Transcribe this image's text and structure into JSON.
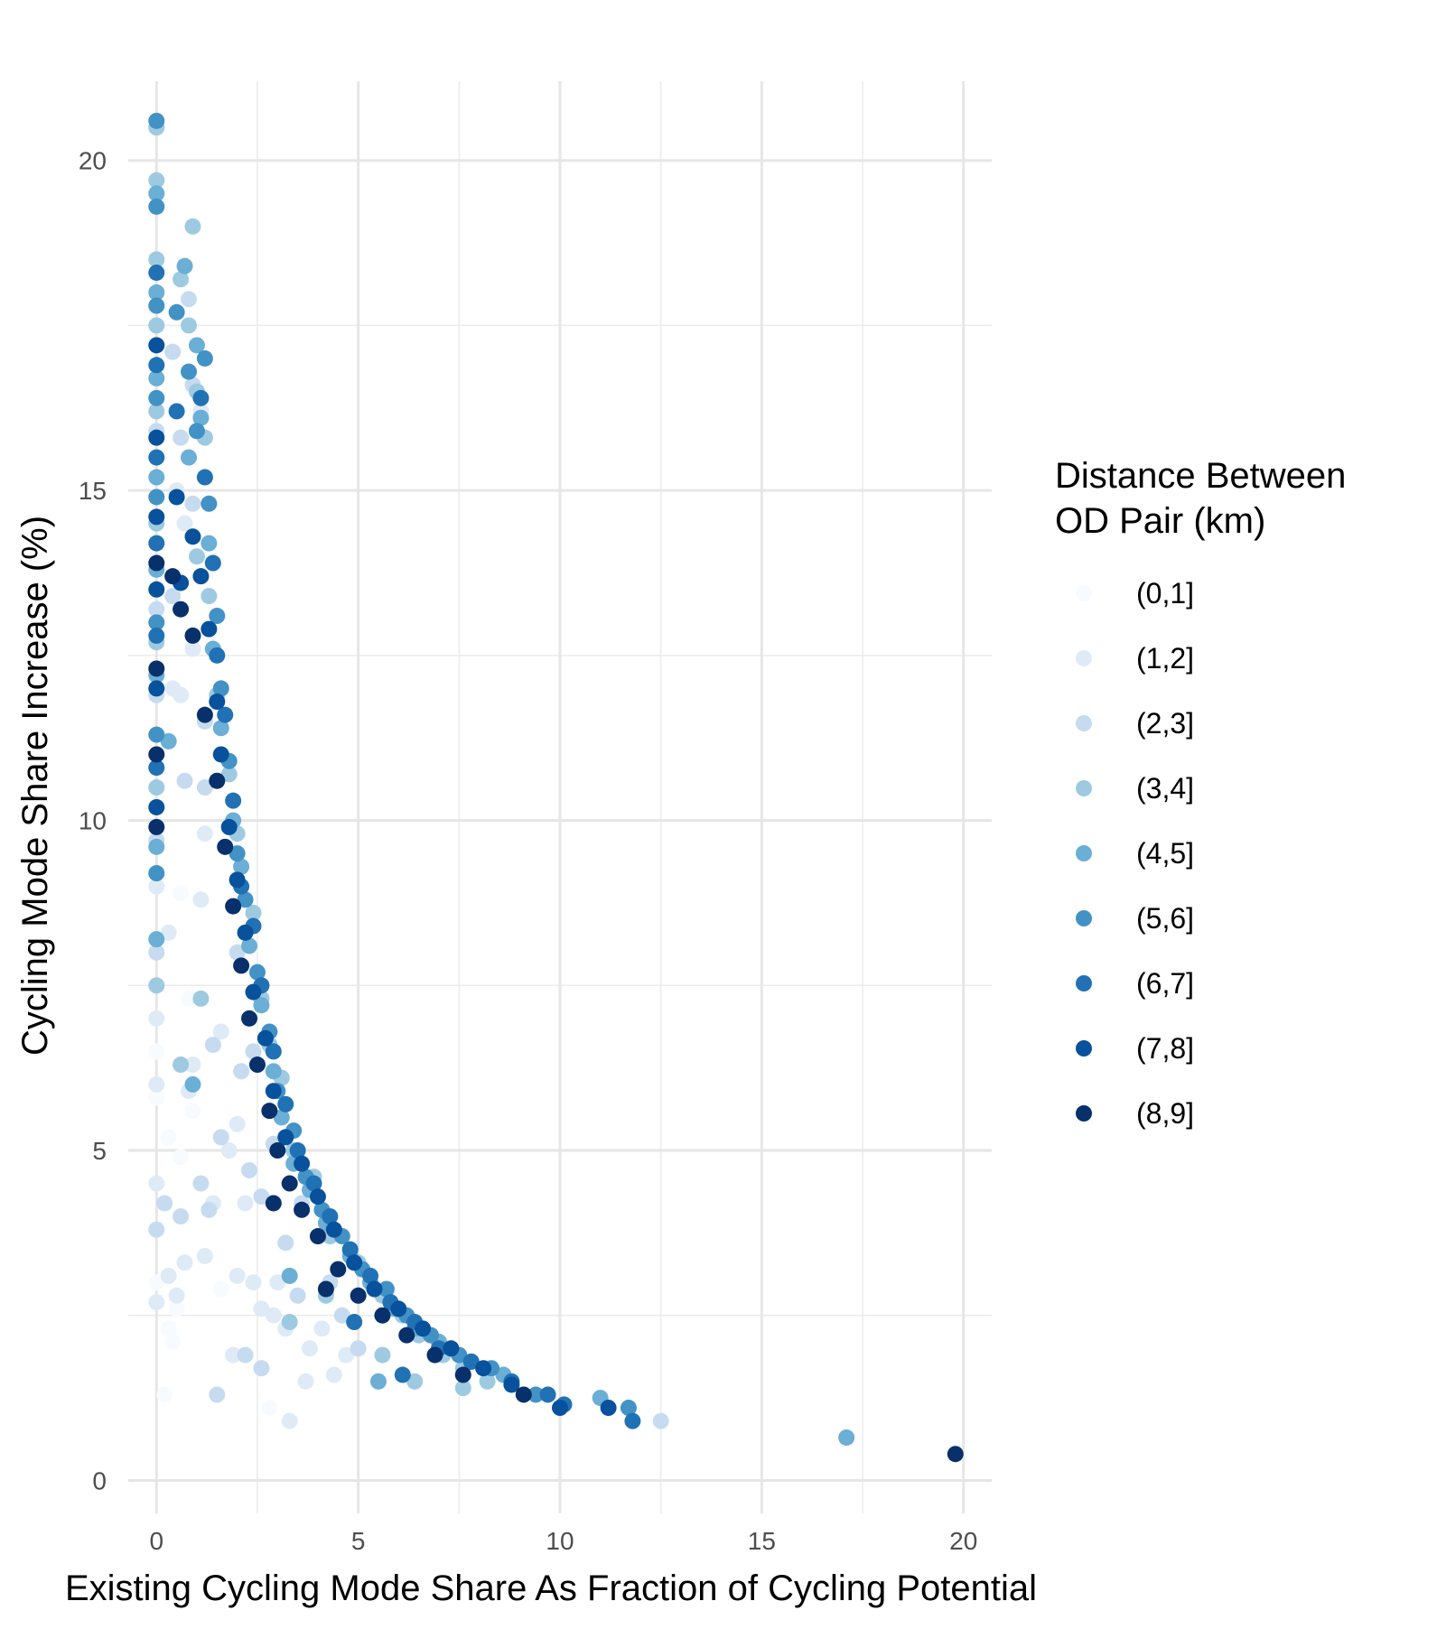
{
  "chart_data": {
    "type": "scatter",
    "title": "",
    "xlabel": "Existing Cycling Mode Share As Fraction of Cycling Potential",
    "ylabel": "Cycling Mode Share Increase (%)",
    "xlim": [
      -0.7,
      20.7
    ],
    "ylim": [
      -0.5,
      21.2
    ],
    "x_ticks": [
      0,
      5,
      10,
      15,
      20
    ],
    "x_tick_labels": [
      "0",
      "5",
      "10",
      "15",
      "20"
    ],
    "y_ticks": [
      0,
      5,
      10,
      15,
      20
    ],
    "y_tick_labels": [
      "0",
      "5",
      "10",
      "15",
      "20"
    ],
    "grid": true,
    "legend": {
      "title_line1": "Distance Between",
      "title_line2": "OD Pair (km)",
      "placement": "right"
    },
    "series": [
      {
        "name": "(0,1]",
        "color": "#f7fbff",
        "points": [
          [
            0.0,
            6.5
          ],
          [
            0.0,
            5.8
          ],
          [
            0.3,
            5.2
          ],
          [
            0.6,
            4.9
          ],
          [
            0.9,
            5.6
          ],
          [
            0.5,
            2.6
          ],
          [
            0.4,
            2.1
          ],
          [
            0.3,
            2.3
          ],
          [
            2.8,
            1.1
          ],
          [
            0.2,
            1.3
          ],
          [
            1.6,
            2.9
          ],
          [
            0.8,
            7.3
          ],
          [
            0.6,
            8.9
          ],
          [
            0.0,
            3.0
          ]
        ]
      },
      {
        "name": "(1,2]",
        "color": "#deebf7",
        "points": [
          [
            0.0,
            2.7
          ],
          [
            0.0,
            4.5
          ],
          [
            0.0,
            6.0
          ],
          [
            0.0,
            7.0
          ],
          [
            0.0,
            9.0
          ],
          [
            0.3,
            3.1
          ],
          [
            0.5,
            2.8
          ],
          [
            0.7,
            3.3
          ],
          [
            1.2,
            3.4
          ],
          [
            0.9,
            6.3
          ],
          [
            1.1,
            8.8
          ],
          [
            1.6,
            6.8
          ],
          [
            1.8,
            5.0
          ],
          [
            2.2,
            4.2
          ],
          [
            2.0,
            3.1
          ],
          [
            2.4,
            3.0
          ],
          [
            3.2,
            2.3
          ],
          [
            3.8,
            2.0
          ],
          [
            4.1,
            2.3
          ],
          [
            4.4,
            1.6
          ],
          [
            4.7,
            1.9
          ],
          [
            3.3,
            0.9
          ],
          [
            2.0,
            5.4
          ],
          [
            0.6,
            11.9
          ],
          [
            0.9,
            12.6
          ],
          [
            0.4,
            12.0
          ],
          [
            1.2,
            9.8
          ],
          [
            0.3,
            8.3
          ],
          [
            0.8,
            5.9
          ],
          [
            1.4,
            4.2
          ],
          [
            2.6,
            2.6
          ],
          [
            3.0,
            3.0
          ],
          [
            0.5,
            15.0
          ],
          [
            1.1,
            16.2
          ],
          [
            0.7,
            14.5
          ],
          [
            1.9,
            1.9
          ],
          [
            3.7,
            1.5
          ],
          [
            2.9,
            2.5
          ]
        ]
      },
      {
        "name": "(2,3]",
        "color": "#c6dbef",
        "points": [
          [
            0.0,
            15.9
          ],
          [
            0.0,
            13.2
          ],
          [
            0.0,
            11.9
          ],
          [
            0.0,
            9.7
          ],
          [
            0.0,
            8.0
          ],
          [
            0.0,
            3.8
          ],
          [
            0.2,
            4.2
          ],
          [
            0.6,
            4.0
          ],
          [
            1.1,
            4.5
          ],
          [
            1.3,
            4.1
          ],
          [
            1.6,
            5.2
          ],
          [
            1.4,
            6.6
          ],
          [
            2.1,
            6.2
          ],
          [
            2.3,
            4.7
          ],
          [
            2.6,
            4.3
          ],
          [
            2.9,
            5.1
          ],
          [
            3.2,
            3.6
          ],
          [
            3.5,
            2.8
          ],
          [
            3.6,
            4.2
          ],
          [
            4.3,
            3.0
          ],
          [
            4.6,
            2.5
          ],
          [
            1.5,
            1.3
          ],
          [
            2.2,
            1.9
          ],
          [
            2.6,
            1.7
          ],
          [
            1.2,
            10.5
          ],
          [
            0.7,
            10.6
          ],
          [
            0.4,
            13.4
          ],
          [
            0.6,
            15.8
          ],
          [
            0.9,
            14.8
          ],
          [
            1.2,
            11.5
          ],
          [
            1.7,
            9.6
          ],
          [
            2.0,
            8.0
          ],
          [
            2.4,
            6.5
          ],
          [
            0.8,
            17.9
          ],
          [
            0.4,
            17.1
          ],
          [
            12.5,
            0.9
          ],
          [
            5.0,
            2.0
          ],
          [
            0.9,
            16.6
          ]
        ]
      },
      {
        "name": "(3,4]",
        "color": "#9ecae1",
        "points": [
          [
            0.0,
            20.5
          ],
          [
            0.0,
            19.7
          ],
          [
            0.0,
            18.5
          ],
          [
            0.0,
            17.5
          ],
          [
            0.0,
            16.2
          ],
          [
            0.0,
            14.5
          ],
          [
            0.0,
            12.7
          ],
          [
            0.0,
            10.5
          ],
          [
            0.0,
            7.5
          ],
          [
            0.9,
            19.0
          ],
          [
            0.6,
            18.2
          ],
          [
            0.8,
            17.5
          ],
          [
            1.0,
            16.5
          ],
          [
            1.2,
            15.8
          ],
          [
            1.0,
            14.0
          ],
          [
            1.3,
            13.4
          ],
          [
            1.5,
            11.9
          ],
          [
            1.8,
            10.7
          ],
          [
            2.0,
            9.8
          ],
          [
            2.4,
            8.6
          ],
          [
            2.6,
            7.3
          ],
          [
            2.8,
            6.6
          ],
          [
            3.1,
            6.1
          ],
          [
            3.4,
            5.0
          ],
          [
            3.9,
            4.6
          ],
          [
            4.3,
            3.7
          ],
          [
            5.0,
            3.3
          ],
          [
            5.6,
            2.8
          ],
          [
            6.1,
            2.5
          ],
          [
            6.5,
            2.2
          ],
          [
            7.1,
            1.9
          ],
          [
            7.6,
            1.7
          ],
          [
            8.2,
            1.5
          ],
          [
            0.6,
            6.3
          ],
          [
            1.1,
            7.3
          ],
          [
            3.3,
            2.4
          ],
          [
            4.2,
            2.8
          ],
          [
            7.6,
            1.4
          ],
          [
            6.4,
            1.5
          ],
          [
            5.6,
            1.9
          ]
        ]
      },
      {
        "name": "(4,5]",
        "color": "#6baed6",
        "points": [
          [
            0.0,
            19.5
          ],
          [
            0.0,
            18.0
          ],
          [
            0.0,
            16.7
          ],
          [
            0.0,
            15.2
          ],
          [
            0.0,
            13.8
          ],
          [
            0.0,
            12.2
          ],
          [
            0.0,
            9.6
          ],
          [
            0.0,
            8.2
          ],
          [
            0.7,
            18.4
          ],
          [
            1.0,
            17.2
          ],
          [
            1.1,
            16.1
          ],
          [
            0.8,
            15.5
          ],
          [
            1.3,
            14.2
          ],
          [
            1.4,
            12.6
          ],
          [
            1.6,
            11.4
          ],
          [
            1.9,
            10.0
          ],
          [
            2.1,
            9.3
          ],
          [
            2.3,
            8.1
          ],
          [
            2.6,
            7.2
          ],
          [
            2.9,
            6.2
          ],
          [
            3.1,
            5.5
          ],
          [
            3.4,
            4.8
          ],
          [
            3.8,
            4.4
          ],
          [
            4.2,
            3.9
          ],
          [
            4.8,
            3.4
          ],
          [
            5.3,
            3.0
          ],
          [
            5.9,
            2.6
          ],
          [
            6.4,
            2.3
          ],
          [
            7.0,
            2.1
          ],
          [
            7.8,
            1.8
          ],
          [
            8.6,
            1.6
          ],
          [
            17.1,
            0.65
          ],
          [
            5.5,
            1.5
          ],
          [
            3.3,
            3.1
          ],
          [
            0.9,
            6.0
          ],
          [
            0.3,
            11.2
          ],
          [
            11.0,
            1.25
          ]
        ]
      },
      {
        "name": "(5,6]",
        "color": "#4292c6",
        "points": [
          [
            0.0,
            20.6
          ],
          [
            0.0,
            19.3
          ],
          [
            0.0,
            17.8
          ],
          [
            0.0,
            16.4
          ],
          [
            0.0,
            14.9
          ],
          [
            0.0,
            13.0
          ],
          [
            0.0,
            11.3
          ],
          [
            0.0,
            9.2
          ],
          [
            1.2,
            17.0
          ],
          [
            1.0,
            15.9
          ],
          [
            1.3,
            14.8
          ],
          [
            1.5,
            13.1
          ],
          [
            1.6,
            12.0
          ],
          [
            1.8,
            10.9
          ],
          [
            2.0,
            9.5
          ],
          [
            2.2,
            8.8
          ],
          [
            2.5,
            7.7
          ],
          [
            2.8,
            6.8
          ],
          [
            3.0,
            5.9
          ],
          [
            3.4,
            5.3
          ],
          [
            3.7,
            4.6
          ],
          [
            4.1,
            4.1
          ],
          [
            4.6,
            3.7
          ],
          [
            5.1,
            3.2
          ],
          [
            5.7,
            2.9
          ],
          [
            6.2,
            2.5
          ],
          [
            6.8,
            2.2
          ],
          [
            7.5,
            1.9
          ],
          [
            8.3,
            1.7
          ],
          [
            9.4,
            1.3
          ],
          [
            11.7,
            1.1
          ],
          [
            0.8,
            16.8
          ],
          [
            0.5,
            17.7
          ]
        ]
      },
      {
        "name": "(6,7]",
        "color": "#2171b5",
        "points": [
          [
            0.0,
            18.3
          ],
          [
            0.0,
            16.9
          ],
          [
            0.0,
            15.5
          ],
          [
            0.0,
            14.2
          ],
          [
            0.0,
            12.8
          ],
          [
            0.0,
            10.8
          ],
          [
            1.1,
            16.4
          ],
          [
            1.2,
            15.2
          ],
          [
            1.4,
            13.9
          ],
          [
            1.5,
            12.5
          ],
          [
            1.7,
            11.6
          ],
          [
            1.9,
            10.3
          ],
          [
            2.1,
            9.0
          ],
          [
            2.4,
            8.4
          ],
          [
            2.6,
            7.5
          ],
          [
            2.9,
            6.5
          ],
          [
            3.2,
            5.7
          ],
          [
            3.5,
            5.0
          ],
          [
            3.9,
            4.5
          ],
          [
            4.3,
            4.0
          ],
          [
            4.8,
            3.5
          ],
          [
            5.3,
            3.1
          ],
          [
            5.8,
            2.7
          ],
          [
            6.4,
            2.4
          ],
          [
            7.0,
            2.0
          ],
          [
            7.8,
            1.8
          ],
          [
            8.8,
            1.5
          ],
          [
            9.7,
            1.3
          ],
          [
            10.1,
            1.15
          ],
          [
            11.8,
            0.9
          ],
          [
            6.1,
            1.6
          ],
          [
            4.9,
            2.4
          ],
          [
            0.5,
            16.2
          ]
        ]
      },
      {
        "name": "(7,8]",
        "color": "#08519c",
        "points": [
          [
            0.0,
            17.2
          ],
          [
            0.0,
            15.8
          ],
          [
            0.0,
            14.6
          ],
          [
            0.0,
            13.5
          ],
          [
            0.0,
            12.0
          ],
          [
            0.0,
            10.2
          ],
          [
            0.5,
            14.9
          ],
          [
            0.9,
            14.3
          ],
          [
            1.1,
            13.7
          ],
          [
            1.3,
            12.9
          ],
          [
            1.5,
            11.8
          ],
          [
            1.6,
            11.0
          ],
          [
            1.8,
            9.9
          ],
          [
            2.0,
            9.1
          ],
          [
            2.2,
            8.3
          ],
          [
            2.4,
            7.4
          ],
          [
            2.7,
            6.7
          ],
          [
            2.9,
            5.9
          ],
          [
            3.2,
            5.2
          ],
          [
            3.6,
            4.8
          ],
          [
            4.0,
            4.3
          ],
          [
            4.4,
            3.8
          ],
          [
            4.9,
            3.3
          ],
          [
            5.4,
            2.9
          ],
          [
            6.0,
            2.6
          ],
          [
            6.6,
            2.3
          ],
          [
            7.3,
            2.0
          ],
          [
            8.1,
            1.7
          ],
          [
            8.8,
            1.45
          ],
          [
            11.2,
            1.1
          ],
          [
            10.0,
            1.1
          ],
          [
            0.6,
            13.6
          ]
        ]
      },
      {
        "name": "(8,9]",
        "color": "#08306b",
        "points": [
          [
            0.0,
            13.9
          ],
          [
            0.0,
            12.3
          ],
          [
            0.0,
            11.0
          ],
          [
            0.0,
            9.9
          ],
          [
            0.4,
            13.7
          ],
          [
            0.6,
            13.2
          ],
          [
            0.9,
            12.8
          ],
          [
            1.2,
            11.6
          ],
          [
            1.5,
            10.6
          ],
          [
            1.7,
            9.6
          ],
          [
            1.9,
            8.7
          ],
          [
            2.1,
            7.8
          ],
          [
            2.3,
            7.0
          ],
          [
            2.5,
            6.3
          ],
          [
            2.8,
            5.6
          ],
          [
            3.0,
            5.0
          ],
          [
            3.3,
            4.5
          ],
          [
            3.6,
            4.1
          ],
          [
            4.0,
            3.7
          ],
          [
            4.5,
            3.2
          ],
          [
            5.0,
            2.8
          ],
          [
            5.6,
            2.5
          ],
          [
            6.2,
            2.2
          ],
          [
            6.9,
            1.9
          ],
          [
            7.6,
            1.6
          ],
          [
            9.1,
            1.3
          ],
          [
            19.8,
            0.4
          ],
          [
            2.9,
            4.2
          ],
          [
            4.2,
            2.9
          ]
        ]
      }
    ]
  }
}
